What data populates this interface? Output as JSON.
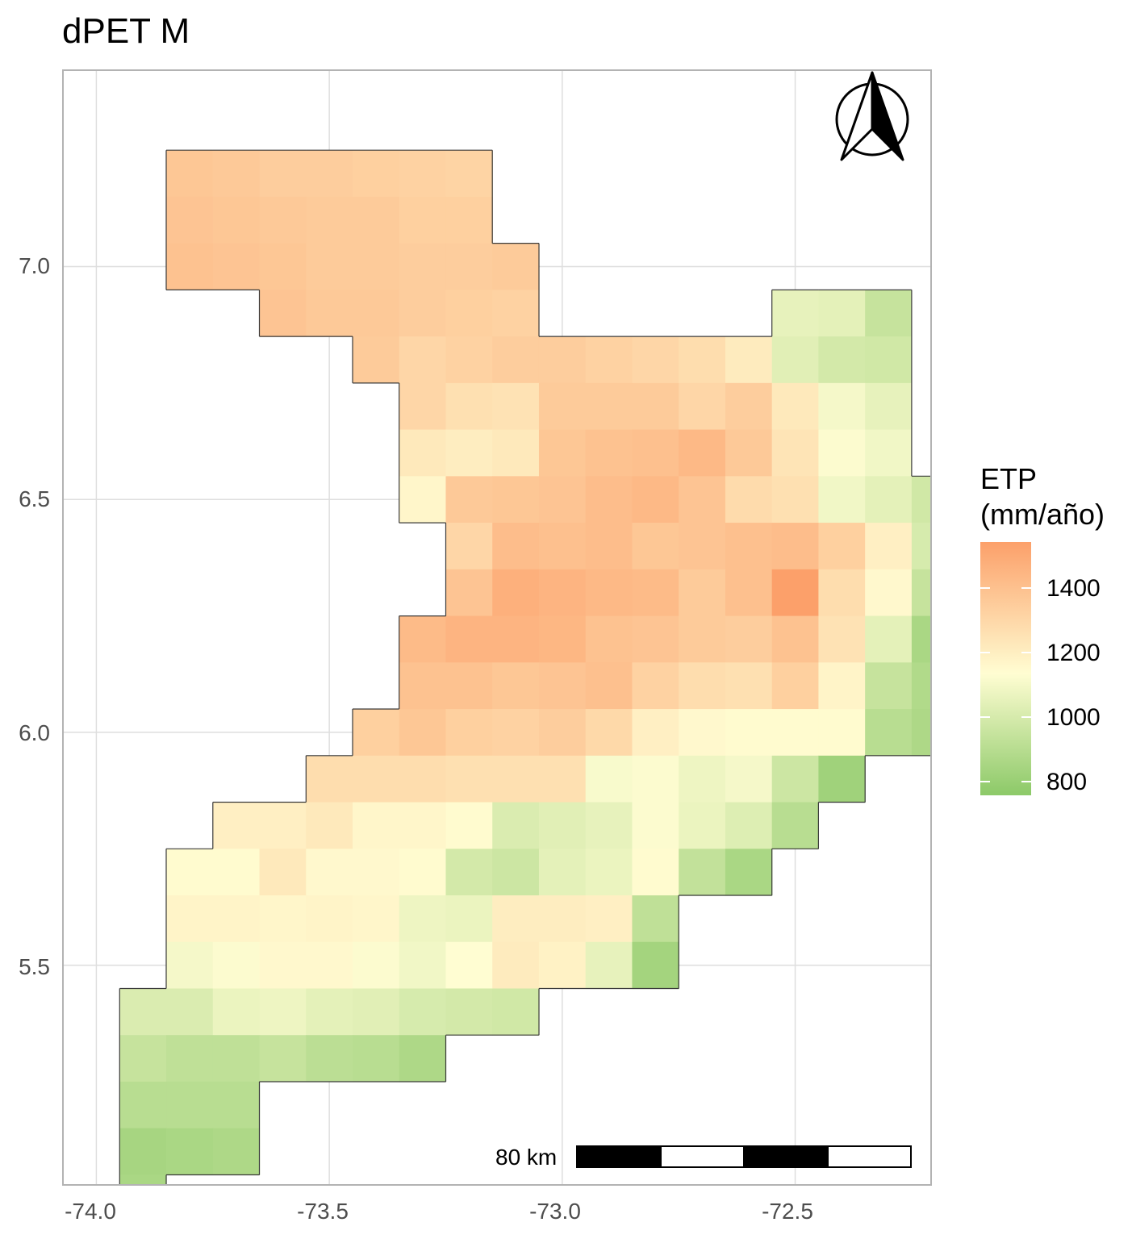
{
  "title": "dPET M",
  "legend": {
    "title_line1": "ETP",
    "title_line2": "(mm/año)",
    "labels": [
      "1400",
      "1200",
      "1000",
      "800"
    ],
    "color_low": "#8cc968",
    "color_mid": "#fffdd2",
    "color_high": "#fca06a"
  },
  "scale_bar": {
    "label": "80 km"
  },
  "north_arrow_icon": "north-arrow-icon",
  "colors": {
    "grid": "#dedede",
    "border": "#b3b3b3",
    "tick_text": "#4d4d4d"
  },
  "chart_data": {
    "type": "heatmap",
    "title": "dPET M",
    "xlabel": "",
    "ylabel": "",
    "x_ticks": [
      "-74.0",
      "-73.5",
      "-73.0",
      "-72.5"
    ],
    "y_ticks": [
      "7.0",
      "6.5",
      "6.0",
      "5.5"
    ],
    "xlim": [
      -74.07,
      -72.21
    ],
    "ylim": [
      5.03,
      7.42
    ],
    "legend_title": "ETP (mm/año)",
    "legend_placement": "right",
    "value_range": [
      790,
      1540
    ],
    "grid": true,
    "cell_size_deg": 0.1,
    "first_row_lat_top": 7.25,
    "first_col_lon_left": -73.95,
    "rows": [
      [
        "",
        "1370",
        "1360",
        "1340",
        "1340",
        "1330",
        "1320",
        "1310",
        "",
        "",
        "",
        "",
        "",
        "",
        "",
        "",
        "",
        "",
        "",
        ""
      ],
      [
        "",
        "1380",
        "1370",
        "1360",
        "1350",
        "1350",
        "1330",
        "1330",
        "",
        "",
        "",
        "",
        "",
        "",
        "",
        "",
        "",
        "",
        "",
        ""
      ],
      [
        "",
        "1390",
        "1380",
        "1370",
        "1350",
        "1350",
        "1340",
        "1340",
        "1350",
        "",
        "",
        "",
        "",
        "",
        "",
        "",
        "",
        "",
        "",
        ""
      ],
      [
        "",
        "",
        "",
        "1380",
        "1360",
        "1360",
        "1340",
        "1330",
        "1320",
        "",
        "",
        "",
        "",
        "",
        "1060",
        "1050",
        "960",
        "",
        "",
        ""
      ],
      [
        "",
        "",
        "",
        "",
        "",
        "1350",
        "1300",
        "1320",
        "1340",
        "1340",
        "1320",
        "1300",
        "1270",
        "1210",
        "1040",
        "1000",
        "990",
        "",
        "",
        ""
      ],
      [
        "",
        "",
        "",
        "",
        "",
        "",
        "1300",
        "1260",
        "1250",
        "1350",
        "1350",
        "1350",
        "1300",
        "1340",
        "1220",
        "1100",
        "1060",
        "",
        "",
        ""
      ],
      [
        "",
        "",
        "",
        "",
        "",
        "",
        "1220",
        "1200",
        "1220",
        "1370",
        "1390",
        "1400",
        "1430",
        "1360",
        "1240",
        "1120",
        "1090",
        "",
        "",
        ""
      ],
      [
        "",
        "",
        "",
        "",
        "",
        "",
        "1160",
        "1360",
        "1370",
        "1380",
        "1410",
        "1430",
        "1380",
        "1280",
        "1260",
        "1090",
        "1050",
        "990",
        "",
        ""
      ],
      [
        "",
        "",
        "",
        "",
        "",
        "",
        "",
        "1300",
        "1410",
        "1400",
        "1410",
        "1370",
        "1380",
        "1400",
        "1410",
        "1330",
        "1190",
        "1010",
        "940",
        ""
      ],
      [
        "",
        "",
        "",
        "",
        "",
        "",
        "",
        "1380",
        "1470",
        "1450",
        "1430",
        "1420",
        "1350",
        "1400",
        "1540",
        "1270",
        "1150",
        "960",
        "880",
        "860"
      ],
      [
        "",
        "",
        "",
        "",
        "",
        "",
        "1420",
        "1450",
        "1450",
        "1440",
        "1390",
        "1380",
        "1350",
        "1340",
        "1390",
        "1250",
        "1050",
        "880",
        "",
        ""
      ],
      [
        "",
        "",
        "",
        "",
        "",
        "",
        "1390",
        "1390",
        "1370",
        "1380",
        "1400",
        "1320",
        "1270",
        "1260",
        "1330",
        "1170",
        "960",
        "900",
        "",
        ""
      ],
      [
        "",
        "",
        "",
        "",
        "",
        "1330",
        "1370",
        "1330",
        "1320",
        "1340",
        "1290",
        "1190",
        "1150",
        "1140",
        "1140",
        "1140",
        "920",
        "890",
        "",
        ""
      ],
      [
        "",
        "",
        "",
        "",
        "1270",
        "1270",
        "1270",
        "1260",
        "1260",
        "1260",
        "1110",
        "1120",
        "1080",
        "1100",
        "980",
        "850",
        "",
        "",
        "",
        ""
      ],
      [
        "",
        "",
        "1190",
        "1190",
        "1220",
        "1160",
        "1160",
        "1140",
        "1020",
        "1040",
        "1060",
        "1120",
        "1070",
        "1030",
        "920",
        "",
        "",
        "",
        "",
        ""
      ],
      [
        "",
        "1140",
        "1140",
        "1220",
        "1150",
        "1150",
        "1140",
        "1000",
        "980",
        "1050",
        "1070",
        "1140",
        "950",
        "880",
        "",
        "",
        "",
        "",
        "",
        ""
      ],
      [
        "",
        "1170",
        "1170",
        "1160",
        "1170",
        "1160",
        "1080",
        "1070",
        "1200",
        "1200",
        "1190",
        "940",
        "",
        "",
        "",
        "",
        "",
        "",
        "",
        ""
      ],
      [
        "",
        "1100",
        "1120",
        "1150",
        "1150",
        "1120",
        "1090",
        "1130",
        "1210",
        "1180",
        "1060",
        "860",
        "",
        "",
        "",
        "",
        "",
        "",
        "",
        ""
      ],
      [
        "1020",
        "1020",
        "1070",
        "1080",
        "1050",
        "1040",
        "1010",
        "1000",
        "990",
        "",
        "",
        "",
        "",
        "",
        "",
        "",
        "",
        "",
        "",
        ""
      ],
      [
        "960",
        "940",
        "940",
        "960",
        "930",
        "920",
        "890",
        "",
        "",
        "",
        "",
        "",
        "",
        "",
        "",
        "",
        "",
        "",
        "",
        ""
      ],
      [
        "920",
        "920",
        "920",
        "",
        "",
        "",
        "",
        "",
        "",
        "",
        "",
        "",
        "",
        "",
        "",
        "",
        "",
        "",
        "",
        ""
      ],
      [
        "870",
        "880",
        "890",
        "",
        "",
        "",
        "",
        "",
        "",
        "",
        "",
        "",
        "",
        "",
        "",
        "",
        "",
        "",
        "",
        ""
      ],
      [
        "880",
        "",
        "",
        "",
        "",
        "",
        "",
        "",
        "",
        "",
        "",
        "",
        "",
        "",
        "",
        "",
        "",
        "",
        "",
        ""
      ]
    ]
  }
}
